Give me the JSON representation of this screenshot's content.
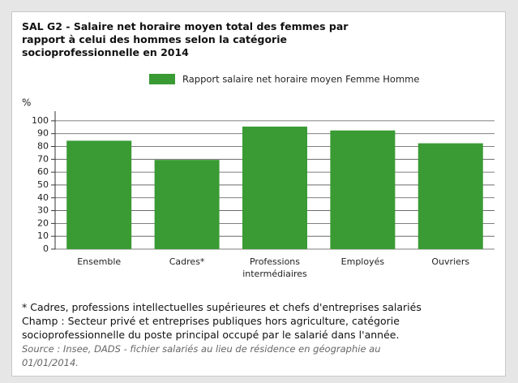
{
  "chart_data": {
    "type": "bar",
    "title": "SAL G2 - Salaire net horaire moyen total des femmes par rapport à celui des hommes selon la catégorie socioprofessionnelle en 2014",
    "y_label": "%",
    "categories": [
      "Ensemble",
      "Cadres*",
      "Professions intermédiaires",
      "Employés",
      "Ouvriers"
    ],
    "series": [
      {
        "name": "Rapport salaire net horaire moyen Femme Homme",
        "color": "#3a9b34",
        "values": [
          84.5,
          69.5,
          95.5,
          92.5,
          82.5
        ]
      }
    ],
    "ylim": [
      0,
      105
    ],
    "yticks": [
      0,
      10,
      20,
      30,
      40,
      50,
      60,
      70,
      80,
      90,
      100
    ],
    "grid": true,
    "notes": [
      "* Cadres, professions intellectuelles supérieures et chefs d'entreprises salariés",
      "Champ : Secteur privé et entreprises publiques hors agriculture, catégorie socioprofessionnelle du poste principal occupé par le salarié dans l'année."
    ],
    "source": "Source : Insee, DADS - fichier salariés au lieu de résidence en géographie au 01/01/2014."
  }
}
